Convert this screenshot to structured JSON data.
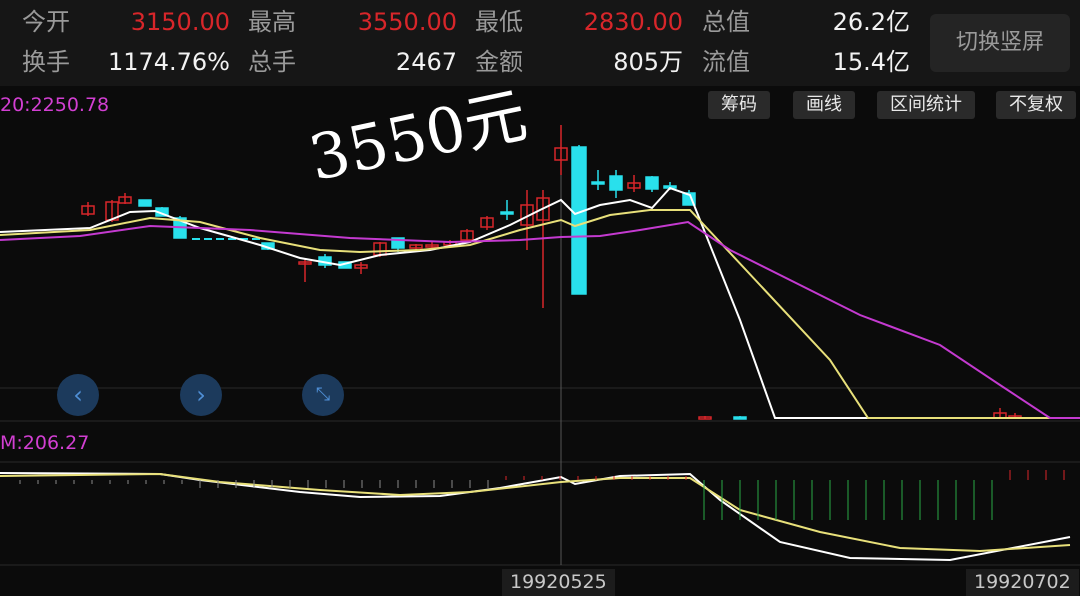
{
  "header": {
    "row1": [
      {
        "label": "今开",
        "value": "3150.00",
        "color": "red"
      },
      {
        "label": "最高",
        "value": "3550.00",
        "color": "red"
      },
      {
        "label": "最低",
        "value": "2830.00",
        "color": "red"
      },
      {
        "label": "总值",
        "value": "26.2亿",
        "color": "white"
      }
    ],
    "row2": [
      {
        "label": "换手",
        "value": "1174.76%",
        "color": "white"
      },
      {
        "label": "总手",
        "value": "2467",
        "color": "white"
      },
      {
        "label": "金额",
        "value": "805万",
        "color": "white"
      },
      {
        "label": "流值",
        "value": "15.4亿",
        "color": "white"
      }
    ],
    "switch_label": "切换竖屏"
  },
  "toolbar": {
    "chips": "筹码",
    "draw": "画线",
    "range_stats": "区间统计",
    "no_adjust": "不复权"
  },
  "main_chart": {
    "ma_readout": "20:2250.78",
    "annotation": "3550元"
  },
  "sub_chart": {
    "readout": "M:206.27"
  },
  "nav": {
    "prev_icon": "chevron-left-icon",
    "next_icon": "chevron-right-icon",
    "collapse_icon": "collapse-arrows-icon"
  },
  "x_axis": {
    "cursor_date": "19920525",
    "end_date": "19920702"
  },
  "colors": {
    "up": "#d8262a",
    "down": "#29e0ec",
    "ma5": "#ffffff",
    "ma10": "#e8e07a",
    "ma20": "#c43ad0",
    "accent": "#4f8fd6"
  }
}
